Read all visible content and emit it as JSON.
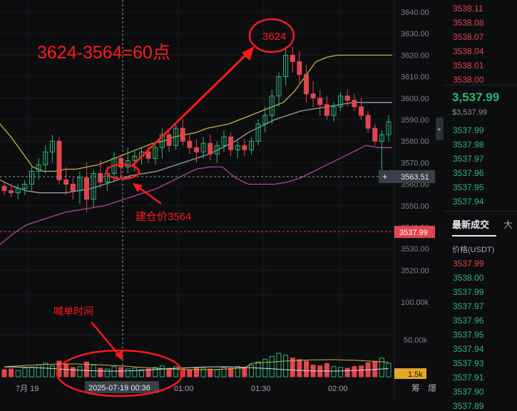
{
  "chart_data": {
    "type": "candlestick",
    "price_axis": {
      "min": 3514,
      "max": 3646,
      "ticks": [
        3640,
        3630,
        3620,
        3610,
        3600,
        3590,
        3580,
        3570,
        3560,
        3550,
        3540,
        3530,
        3520
      ]
    },
    "price_tick_labels": [
      "3640.00",
      "3630.00",
      "3620.00",
      "3610.00",
      "3600.00",
      "3590.00",
      "3580.00",
      "3570.00",
      "3560.00",
      "3550.00",
      "3540.00",
      "3530.00",
      "3520.00"
    ],
    "volume_tick_labels": [
      "100.00k",
      "50.00k"
    ],
    "x_tick_labels": [
      "7月 19",
      "01:00",
      "01:30",
      "02:00"
    ],
    "crosshair_time_label": "2025-07-19 00:36",
    "crosshair_price_label": "3563.51",
    "last_price_label": "3537.99",
    "volume_badge_label": "1.5k",
    "axis_corner_labels": [
      "筹",
      "爆"
    ],
    "candles": [
      [
        3559,
        3561,
        3555,
        3557
      ],
      [
        3557,
        3559,
        3554,
        3556
      ],
      [
        3556,
        3560,
        3553,
        3558
      ],
      [
        3558,
        3562,
        3555,
        3560
      ],
      [
        3560,
        3568,
        3557,
        3566
      ],
      [
        3566,
        3572,
        3562,
        3569
      ],
      [
        3569,
        3578,
        3565,
        3575
      ],
      [
        3575,
        3583,
        3570,
        3580
      ],
      [
        3580,
        3582,
        3560,
        3562
      ],
      [
        3562,
        3568,
        3555,
        3560
      ],
      [
        3560,
        3563,
        3553,
        3557
      ],
      [
        3557,
        3566,
        3551,
        3563
      ],
      [
        3563,
        3570,
        3547,
        3553
      ],
      [
        3553,
        3567,
        3549,
        3565
      ],
      [
        3565,
        3571,
        3558,
        3561
      ],
      [
        3561,
        3568,
        3557,
        3565
      ],
      [
        3565,
        3575,
        3561,
        3572
      ],
      [
        3572,
        3574,
        3563,
        3568
      ],
      [
        3568,
        3577,
        3565,
        3571
      ],
      [
        3571,
        3576,
        3566,
        3573
      ],
      [
        3573,
        3577,
        3569,
        3575
      ],
      [
        3575,
        3578,
        3570,
        3572
      ],
      [
        3572,
        3580,
        3569,
        3577
      ],
      [
        3577,
        3586,
        3572,
        3583
      ],
      [
        3583,
        3586,
        3575,
        3578
      ],
      [
        3578,
        3589,
        3576,
        3586
      ],
      [
        3586,
        3590,
        3578,
        3580
      ],
      [
        3580,
        3583,
        3574,
        3577
      ],
      [
        3577,
        3581,
        3570,
        3575
      ],
      [
        3575,
        3582,
        3572,
        3579
      ],
      [
        3579,
        3583,
        3571,
        3574
      ],
      [
        3574,
        3580,
        3570,
        3578
      ],
      [
        3578,
        3585,
        3575,
        3582
      ],
      [
        3582,
        3584,
        3573,
        3576
      ],
      [
        3576,
        3580,
        3572,
        3578
      ],
      [
        3578,
        3581,
        3573,
        3576
      ],
      [
        3576,
        3582,
        3574,
        3580
      ],
      [
        3580,
        3590,
        3578,
        3588
      ],
      [
        3588,
        3596,
        3584,
        3592
      ],
      [
        3592,
        3604,
        3588,
        3601
      ],
      [
        3601,
        3612,
        3596,
        3610
      ],
      [
        3610,
        3624,
        3606,
        3620
      ],
      [
        3620,
        3624,
        3612,
        3617
      ],
      [
        3617,
        3622,
        3606,
        3611
      ],
      [
        3611,
        3615,
        3598,
        3602
      ],
      [
        3602,
        3608,
        3596,
        3600
      ],
      [
        3600,
        3604,
        3592,
        3597
      ],
      [
        3597,
        3601,
        3590,
        3592
      ],
      [
        3592,
        3598,
        3589,
        3596
      ],
      [
        3596,
        3603,
        3594,
        3601
      ],
      [
        3601,
        3604,
        3596,
        3599
      ],
      [
        3599,
        3602,
        3594,
        3596
      ],
      [
        3596,
        3600,
        3590,
        3592
      ],
      [
        3592,
        3594,
        3584,
        3586
      ],
      [
        3586,
        3588,
        3578,
        3580
      ],
      [
        3580,
        3585,
        3562,
        3583
      ],
      [
        3583,
        3592,
        3580,
        3589
      ]
    ],
    "volumes": [
      18,
      20,
      16,
      22,
      25,
      30,
      35,
      28,
      40,
      32,
      24,
      26,
      38,
      30,
      22,
      20,
      26,
      24,
      20,
      22,
      18,
      20,
      24,
      28,
      22,
      26,
      20,
      18,
      24,
      22,
      20,
      18,
      24,
      22,
      26,
      24,
      30,
      38,
      45,
      52,
      60,
      55,
      48,
      44,
      40,
      30,
      28,
      34,
      26,
      24,
      22,
      26,
      28,
      36,
      40,
      48,
      34
    ],
    "ma_yellow": [
      3588,
      3582,
      3575,
      3568,
      3566,
      3566,
      3567,
      3567,
      3568,
      3569,
      3571,
      3573,
      3575,
      3577,
      3579,
      3580,
      3582,
      3583,
      3584,
      3586,
      3587,
      3588,
      3590,
      3592,
      3594,
      3596,
      3598,
      3603,
      3610,
      3617,
      3619,
      3620,
      3620,
      3620,
      3620,
      3620,
      3620
    ],
    "ma_gray": [
      3562,
      3559,
      3557,
      3556,
      3556,
      3556,
      3557,
      3558,
      3560,
      3562,
      3564,
      3565,
      3566,
      3568,
      3570,
      3572,
      3574,
      3577,
      3580,
      3584,
      3587,
      3590,
      3592,
      3594,
      3595,
      3596,
      3597,
      3598,
      3598,
      3598,
      3598
    ],
    "ma_purple": [
      3532,
      3537,
      3541,
      3543,
      3545,
      3547,
      3548,
      3549,
      3550,
      3552,
      3554,
      3556,
      3558,
      3561,
      3564,
      3567,
      3568,
      3568,
      3563,
      3560,
      3560,
      3560,
      3561,
      3563,
      3566,
      3569,
      3572,
      3575,
      3578,
      3577,
      3577
    ]
  },
  "annotations": {
    "headline": "3624-3564=60点",
    "peak_label": "3624",
    "entry_label": "建仓价3564",
    "call_time_label": "喊单时间"
  },
  "order_book": {
    "asks": [
      "3538.11",
      "3538.08",
      "3538.07",
      "3538.04",
      "3538.01",
      "3538.00"
    ],
    "last_price": "3,537.99",
    "last_price_sub": "$3,537.99",
    "bids": [
      "3537.99",
      "3537.98",
      "3537.97",
      "3537.96",
      "3537.95",
      "3537.94"
    ],
    "trades_tab": "最新成交",
    "trades_tab_other": "大",
    "trades_column": "价格(USDT)",
    "trades": [
      {
        "p": "3537.99",
        "side": "ask"
      },
      {
        "p": "3538.00",
        "side": "bid"
      },
      {
        "p": "3537.99",
        "side": "bid"
      },
      {
        "p": "3537.97",
        "side": "bid"
      },
      {
        "p": "3537.96",
        "side": "bid"
      },
      {
        "p": "3537.95",
        "side": "bid"
      },
      {
        "p": "3537.94",
        "side": "bid"
      },
      {
        "p": "3537.93",
        "side": "bid"
      },
      {
        "p": "3537.91",
        "side": "bid"
      },
      {
        "p": "3537.90",
        "side": "bid"
      },
      {
        "p": "3537.89",
        "side": "bid"
      }
    ]
  },
  "colors": {
    "up": "#2db67c",
    "down": "#e0464e",
    "annotation": "#ff1a1a",
    "ma_yellow": "#c9b531",
    "ma_gray": "#9a9ea6",
    "ma_purple": "#b3429e",
    "grid": "#1a1c20",
    "axis_text": "#7c818a"
  }
}
